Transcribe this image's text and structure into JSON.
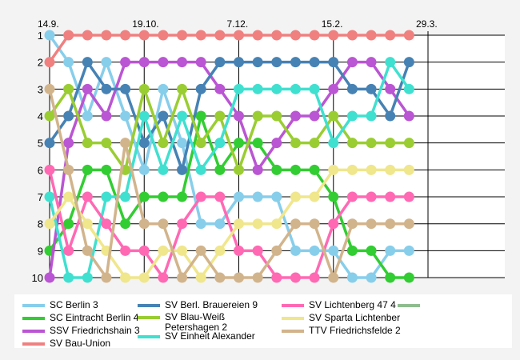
{
  "chart_data": {
    "type": "line",
    "title": "",
    "xlabel": "",
    "ylabel": "",
    "x_tick_labels": [
      {
        "label": "14.9.",
        "index": 0
      },
      {
        "label": "19.10.",
        "index": 5
      },
      {
        "label": "7.12.",
        "index": 10
      },
      {
        "label": "15.2.",
        "index": 15
      },
      {
        "label": "29.3.",
        "index": 20
      }
    ],
    "y_ticks": [
      1,
      2,
      3,
      4,
      5,
      6,
      7,
      8,
      9,
      10
    ],
    "ylim": [
      1,
      10
    ],
    "y_inverted": true,
    "grid": true,
    "legend_position": "bottom",
    "series": [
      {
        "name": "SC Berlin 3",
        "color": "#87CEEB",
        "values": [
          1,
          2,
          4,
          2,
          4,
          6,
          3,
          5,
          8,
          8,
          7,
          7,
          7,
          9,
          9,
          9,
          10,
          10,
          9,
          9
        ]
      },
      {
        "name": "SC Eintracht Berlin 4",
        "color": "#32CD32",
        "values": [
          9,
          8,
          6,
          6,
          8,
          7,
          7,
          7,
          4,
          6,
          5,
          5,
          6,
          6,
          6,
          7,
          9,
          9,
          10,
          10
        ]
      },
      {
        "name": "SSV Friedrichshain 3",
        "color": "#BA55D3",
        "values": [
          10,
          5,
          3,
          4,
          2,
          2,
          2,
          2,
          2,
          3,
          4,
          6,
          5,
          4,
          4,
          3,
          2,
          2,
          3,
          4
        ]
      },
      {
        "name": "SV Bau-Union",
        "color": "#F08080",
        "values": [
          2,
          1,
          1,
          1,
          1,
          1,
          1,
          1,
          1,
          1,
          1,
          1,
          1,
          1,
          1,
          1,
          1,
          1,
          1,
          1
        ]
      },
      {
        "name": "SV Berl. Brauereien 9",
        "color": "#4682B4",
        "values": [
          5,
          4,
          2,
          3,
          3,
          5,
          4,
          6,
          3,
          2,
          2,
          2,
          2,
          2,
          2,
          2,
          3,
          3,
          4,
          2
        ]
      },
      {
        "name": "SV Blau-Weiß Petershagen 2",
        "color": "#9ACD32",
        "values": [
          4,
          3,
          5,
          5,
          6,
          3,
          5,
          3,
          5,
          4,
          6,
          4,
          4,
          5,
          5,
          4,
          5,
          5,
          5,
          5
        ]
      },
      {
        "name": "SV Einheit Alexander",
        "color": "#40E0D0",
        "values": [
          7,
          10,
          10,
          7,
          7,
          4,
          6,
          4,
          6,
          5,
          3,
          3,
          3,
          3,
          3,
          5,
          4,
          4,
          2,
          3
        ]
      },
      {
        "name": "SV Lichtenberg 47 4",
        "color": "#FF69B4",
        "values": [
          6,
          9,
          7,
          8,
          9,
          9,
          10,
          8,
          7,
          7,
          9,
          9,
          10,
          10,
          10,
          8,
          7,
          7,
          7,
          7
        ]
      },
      {
        "name": "SV Sparta Lichtenber",
        "color": "#F0E68C",
        "values": [
          8,
          7,
          8,
          9,
          10,
          10,
          9,
          9,
          10,
          9,
          8,
          8,
          8,
          7,
          7,
          6,
          6,
          6,
          6,
          6
        ]
      },
      {
        "name": "TTV Friedrichsfelde 2",
        "color": "#D2B48C",
        "values": [
          3,
          6,
          9,
          10,
          5,
          8,
          8,
          10,
          9,
          10,
          10,
          10,
          9,
          8,
          8,
          10,
          8,
          8,
          8,
          8
        ]
      },
      {
        "name": "",
        "color": "#8FBC8F",
        "values": []
      }
    ]
  }
}
